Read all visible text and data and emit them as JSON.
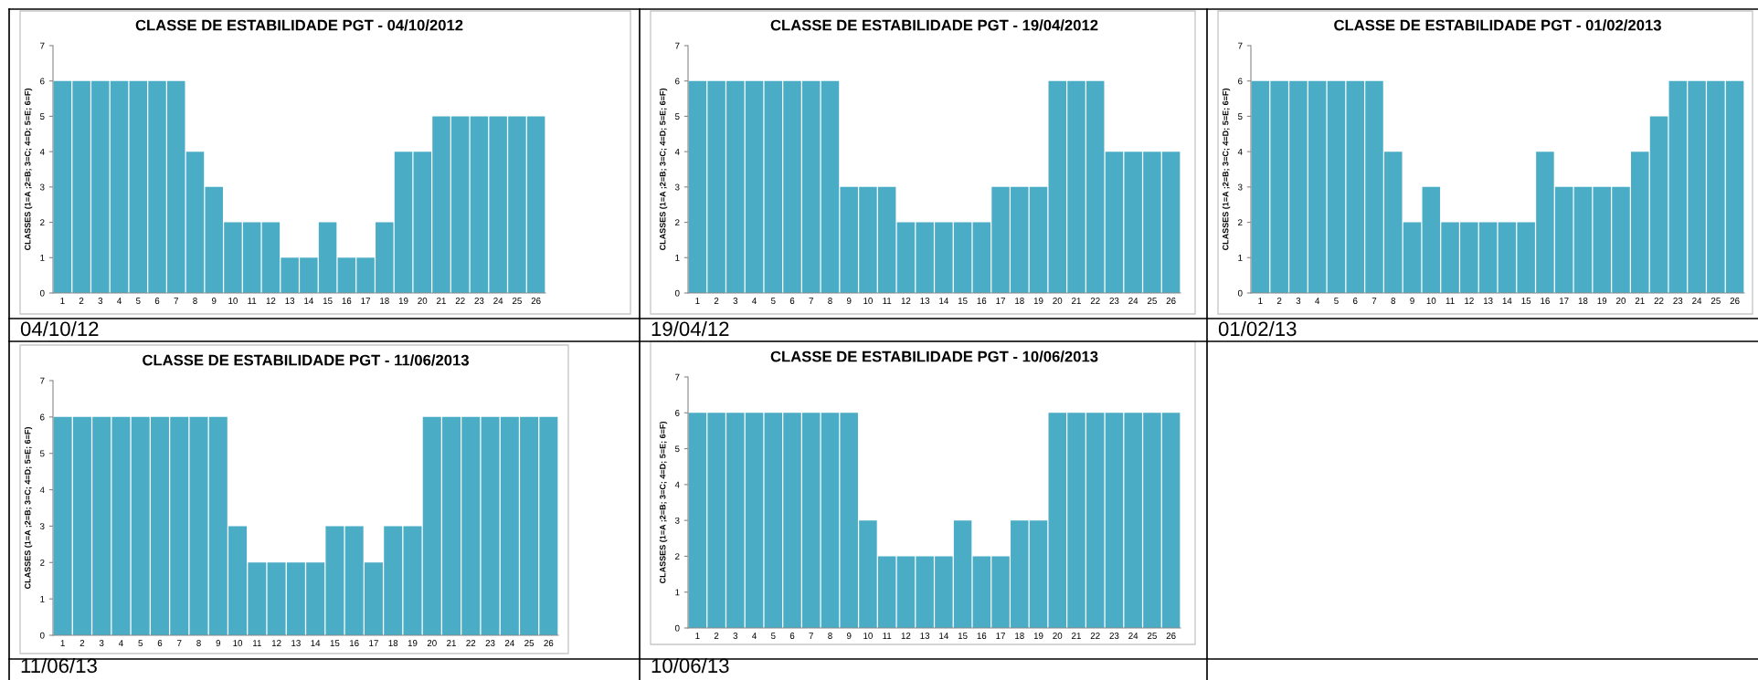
{
  "chart_data": [
    {
      "type": "bar",
      "title": "CLASSE DE ESTABILIDADE PGT - 04/10/2012",
      "ylabel": "CLASSES (1=A ;2=B; 3=C; 4=D; 5=E; 6=F)",
      "categories": [
        "1",
        "2",
        "3",
        "4",
        "5",
        "6",
        "7",
        "8",
        "9",
        "10",
        "11",
        "12",
        "13",
        "14",
        "15",
        "16",
        "17",
        "18",
        "19",
        "20",
        "21",
        "22",
        "23",
        "24",
        "25",
        "26"
      ],
      "color": "#4bacc6",
      "values": [
        6,
        6,
        6,
        6,
        6,
        6,
        6,
        4,
        3,
        2,
        2,
        2,
        1,
        1,
        2,
        1,
        1,
        2,
        4,
        4,
        5,
        5,
        5,
        5,
        5,
        5
      ],
      "ylim": [
        0,
        7
      ],
      "yticks": [
        0,
        1,
        2,
        3,
        4,
        5,
        6,
        7
      ],
      "grid": false,
      "annotations": [
        "04/10/12"
      ]
    },
    {
      "type": "bar",
      "title": "CLASSE DE ESTABILIDADE PGT - 19/04/2012",
      "ylabel": "CLASSES (1=A ;2=B; 3=C; 4=D; 5=E; 6=F)",
      "categories": [
        "1",
        "2",
        "3",
        "4",
        "5",
        "6",
        "7",
        "8",
        "9",
        "10",
        "11",
        "12",
        "13",
        "14",
        "15",
        "16",
        "17",
        "18",
        "19",
        "20",
        "21",
        "22",
        "23",
        "24",
        "25",
        "26"
      ],
      "color": "#4bacc6",
      "values": [
        6,
        6,
        6,
        6,
        6,
        6,
        6,
        6,
        3,
        3,
        3,
        2,
        2,
        2,
        2,
        2,
        3,
        3,
        3,
        6,
        6,
        6,
        4,
        4,
        4,
        4
      ],
      "ylim": [
        0,
        7
      ],
      "yticks": [
        0,
        1,
        2,
        3,
        4,
        5,
        6,
        7
      ],
      "grid": false,
      "annotations": [
        "19/04/12"
      ]
    },
    {
      "type": "bar",
      "title": "CLASSE DE ESTABILIDADE PGT - 01/02/2013",
      "ylabel": "CLASSES (1=A ;2=B; 3=C; 4=D; 5=E; 6=F)",
      "categories": [
        "1",
        "2",
        "3",
        "4",
        "5",
        "6",
        "7",
        "8",
        "9",
        "10",
        "11",
        "12",
        "13",
        "14",
        "15",
        "16",
        "17",
        "18",
        "19",
        "20",
        "21",
        "22",
        "23",
        "24",
        "25",
        "26"
      ],
      "color": "#4bacc6",
      "values": [
        6,
        6,
        6,
        6,
        6,
        6,
        6,
        4,
        2,
        3,
        2,
        2,
        2,
        2,
        2,
        4,
        3,
        3,
        3,
        3,
        4,
        5,
        6,
        6,
        6,
        6
      ],
      "ylim": [
        0,
        7
      ],
      "yticks": [
        0,
        1,
        2,
        3,
        4,
        5,
        6,
        7
      ],
      "grid": false,
      "annotations": [
        "01/02/13"
      ]
    },
    {
      "type": "bar",
      "title": "CLASSE DE ESTABILIDADE PGT - 11/06/2013",
      "ylabel": "CLASSES (1=A ;2=B; 3=C; 4=D; 5=E; 6=F)",
      "categories": [
        "1",
        "2",
        "3",
        "4",
        "5",
        "6",
        "7",
        "8",
        "9",
        "10",
        "11",
        "12",
        "13",
        "14",
        "15",
        "16",
        "17",
        "18",
        "19",
        "20",
        "21",
        "22",
        "23",
        "24",
        "25",
        "26"
      ],
      "color": "#4bacc6",
      "values": [
        6,
        6,
        6,
        6,
        6,
        6,
        6,
        6,
        6,
        3,
        2,
        2,
        2,
        2,
        3,
        3,
        2,
        3,
        3,
        6,
        6,
        6,
        6,
        6,
        6,
        6
      ],
      "ylim": [
        0,
        7
      ],
      "yticks": [
        0,
        1,
        2,
        3,
        4,
        5,
        6,
        7
      ],
      "grid": false,
      "annotations": [
        "11/06/13"
      ]
    },
    {
      "type": "bar",
      "title": "CLASSE DE ESTABILIDADE PGT - 10/06/2013",
      "ylabel": "CLASSES (1=A ;2=B; 3=C; 4=D; 5=E; 6=F)",
      "categories": [
        "1",
        "2",
        "3",
        "4",
        "5",
        "6",
        "7",
        "8",
        "9",
        "10",
        "11",
        "12",
        "13",
        "14",
        "15",
        "16",
        "17",
        "18",
        "19",
        "20",
        "21",
        "22",
        "23",
        "24",
        "25",
        "26"
      ],
      "color": "#4bacc6",
      "values": [
        6,
        6,
        6,
        6,
        6,
        6,
        6,
        6,
        6,
        3,
        2,
        2,
        2,
        2,
        3,
        2,
        2,
        3,
        3,
        6,
        6,
        6,
        6,
        6,
        6,
        6
      ],
      "ylim": [
        0,
        7
      ],
      "yticks": [
        0,
        1,
        2,
        3,
        4,
        5,
        6,
        7
      ],
      "grid": false,
      "annotations": [
        "10/06/13"
      ]
    }
  ]
}
